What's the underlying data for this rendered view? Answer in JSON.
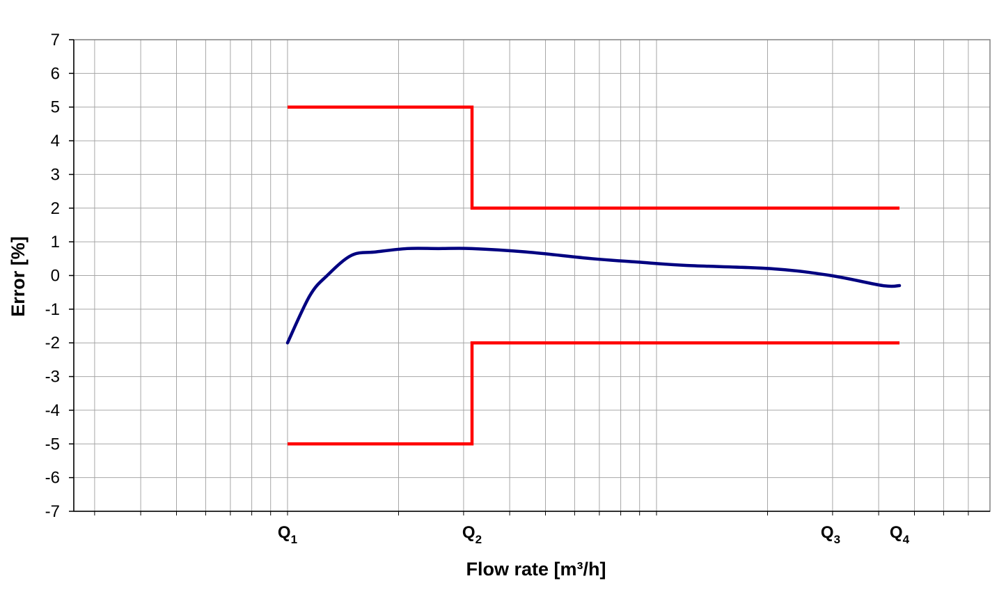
{
  "chart_data": {
    "type": "line",
    "title": "",
    "xlabel": "Flow rate [m³/h]",
    "ylabel": "Error [%]",
    "x_scale": "log",
    "y_ticks": [
      7,
      6,
      5,
      4,
      3,
      2,
      1,
      0,
      -1,
      -2,
      -3,
      -4,
      -5,
      -6,
      -7
    ],
    "ylim": [
      -7,
      7
    ],
    "grid": true,
    "x_ticks": [
      {
        "base": "Q",
        "sub": "1"
      },
      {
        "base": "Q",
        "sub": "2"
      },
      {
        "base": "Q",
        "sub": "3"
      },
      {
        "base": "Q",
        "sub": "4"
      }
    ],
    "series": [
      {
        "color": "#ff0000",
        "points": [
          [
            "Q1",
            5
          ],
          [
            "Q2",
            5
          ],
          [
            "Q2",
            2
          ],
          [
            "Q4",
            2
          ]
        ]
      },
      {
        "color": "#ff0000",
        "points": [
          [
            "Q1",
            -5
          ],
          [
            "Q2",
            -5
          ],
          [
            "Q2",
            -2
          ],
          [
            "Q4",
            -2
          ]
        ]
      },
      {
        "color": "#000080",
        "values": [
          -2.0,
          -0.6,
          0.0,
          0.6,
          0.7,
          0.8,
          0.8,
          0.8,
          0.7,
          0.5,
          0.4,
          0.3,
          0.2,
          0.0,
          -0.3,
          -0.3
        ]
      }
    ]
  }
}
